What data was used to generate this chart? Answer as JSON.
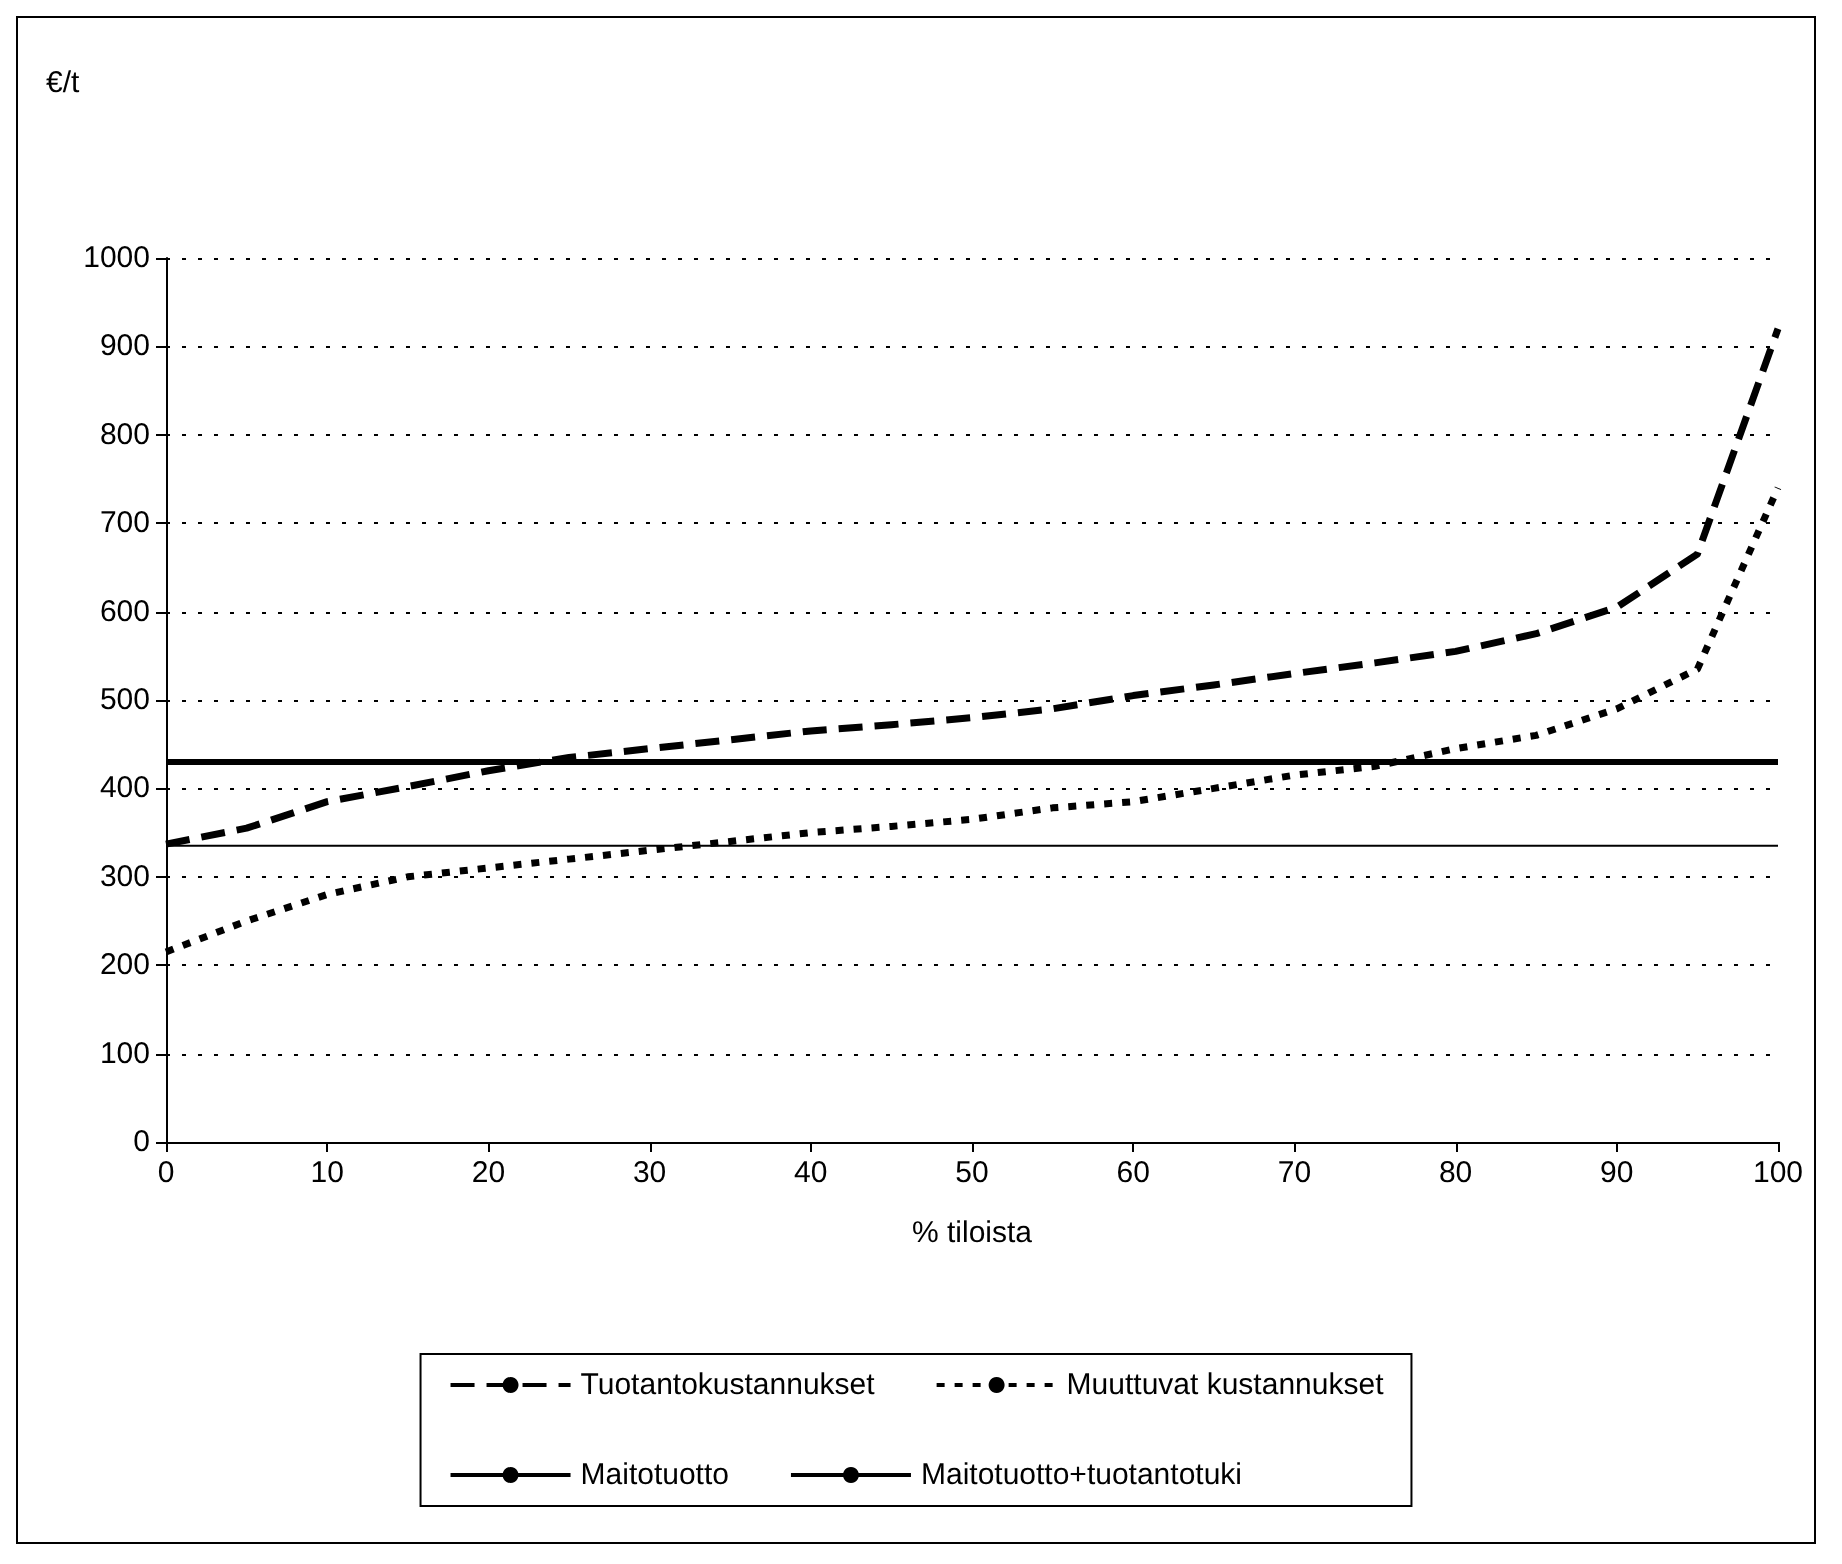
{
  "chart_data": {
    "type": "line",
    "ylabel": "€/t",
    "xlabel": "% tiloista",
    "xlim": [
      0,
      100
    ],
    "xticks": [
      0,
      10,
      20,
      30,
      40,
      50,
      60,
      70,
      80,
      90,
      100
    ],
    "ylim": [
      0,
      1000
    ],
    "yticks": [
      0,
      100,
      200,
      300,
      400,
      500,
      600,
      700,
      800,
      900,
      1000
    ],
    "grid": "y",
    "legend": "bottom",
    "marker": "none",
    "series": [
      {
        "name": "Tuotantokustannukset",
        "color": "#000000",
        "line_style": "dashed",
        "x": [
          0,
          5,
          10,
          15,
          20,
          25,
          30,
          35,
          40,
          45,
          50,
          55,
          60,
          65,
          70,
          75,
          80,
          85,
          90,
          95,
          100
        ],
        "values": [
          337,
          355,
          385,
          402,
          420,
          435,
          445,
          455,
          465,
          472,
          480,
          490,
          505,
          517,
          530,
          542,
          555,
          575,
          605,
          665,
          920
        ]
      },
      {
        "name": "Muuttuvat kustannukset",
        "color": "#000000",
        "line_style": "dotted",
        "x": [
          0,
          5,
          10,
          15,
          20,
          25,
          30,
          35,
          40,
          45,
          50,
          55,
          60,
          65,
          70,
          75,
          80,
          85,
          90,
          95,
          100
        ],
        "values": [
          215,
          250,
          280,
          300,
          310,
          320,
          330,
          340,
          350,
          357,
          365,
          378,
          385,
          400,
          415,
          425,
          445,
          460,
          490,
          535,
          740
        ]
      },
      {
        "name": "Maitotuotto",
        "color": "#000000",
        "line_style": "solid",
        "x": [
          0,
          100
        ],
        "values": [
          335,
          335
        ]
      },
      {
        "name": "Maitotuotto+tuotantotuki",
        "color": "#000000",
        "line_style": "solid",
        "x": [
          0,
          100
        ],
        "values": [
          430,
          430
        ]
      }
    ]
  }
}
